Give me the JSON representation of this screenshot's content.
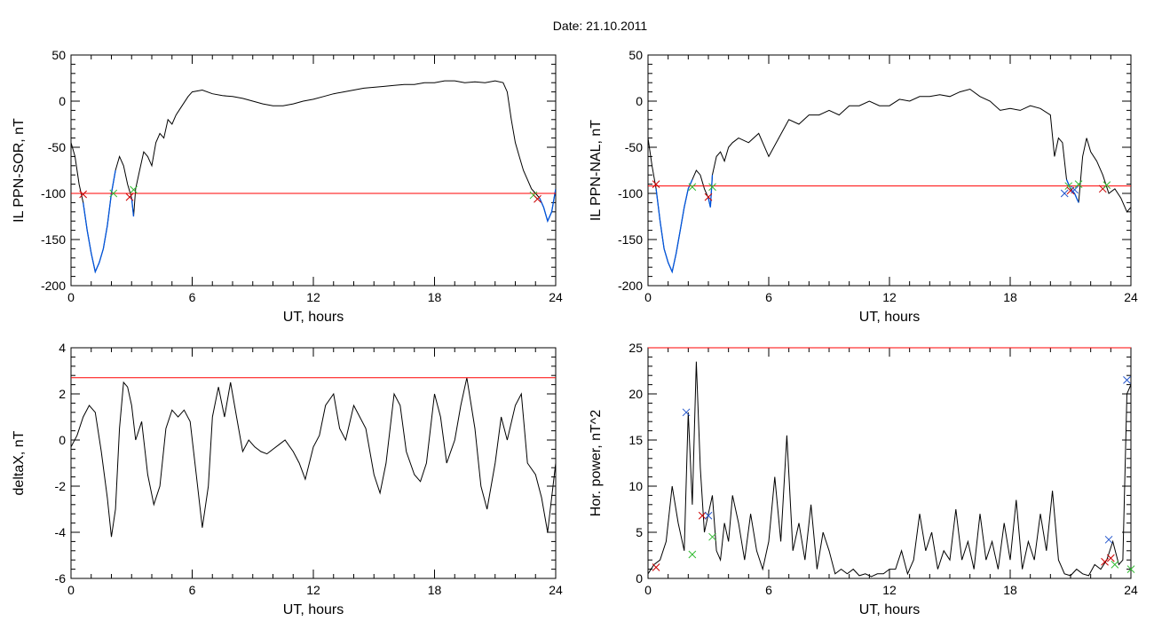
{
  "page": {
    "title": "Date:  21.10.2011"
  },
  "colors": {
    "threshold": "#ff0000",
    "trace": "#000000",
    "highlight": "#0055dd",
    "marker_red": "#cc0000",
    "marker_blue": "#2255cc",
    "marker_green": "#33bb33"
  },
  "chart_data": [
    {
      "type": "line",
      "xlabel": "UT, hours",
      "ylabel": "IL PPN-SOR, nT",
      "xlim": [
        0,
        24
      ],
      "ylim": [
        -200,
        50
      ],
      "xticks": [
        0,
        6,
        12,
        18,
        24
      ],
      "yticks": [
        -200,
        -150,
        -100,
        -50,
        0,
        50
      ],
      "threshold": -100,
      "series": [
        {
          "x": [
            0,
            0.2,
            0.4,
            0.6,
            0.8,
            1.0,
            1.2,
            1.4,
            1.6,
            1.8,
            2.0,
            2.2,
            2.4,
            2.6,
            2.8,
            3.0,
            3.1,
            3.2,
            3.4,
            3.6,
            3.8,
            4.0,
            4.2,
            4.4,
            4.6,
            4.8,
            5.0,
            5.2,
            5.5,
            5.8,
            6.0,
            6.5,
            7,
            7.5,
            8,
            8.5,
            9,
            9.5,
            10,
            10.5,
            11,
            11.5,
            12,
            12.5,
            13,
            13.5,
            14,
            14.5,
            15,
            15.5,
            16,
            16.5,
            17,
            17.5,
            18,
            18.5,
            19,
            19.5,
            20,
            20.5,
            21,
            21.4,
            21.6,
            21.8,
            22.0,
            22.2,
            22.4,
            22.6,
            22.8,
            23.0,
            23.2,
            23.4,
            23.6,
            23.8,
            24.0
          ],
          "y": [
            -45,
            -60,
            -90,
            -110,
            -140,
            -165,
            -185,
            -175,
            -160,
            -135,
            -100,
            -75,
            -60,
            -70,
            -90,
            -105,
            -125,
            -95,
            -75,
            -55,
            -60,
            -70,
            -45,
            -35,
            -40,
            -20,
            -25,
            -15,
            -5,
            5,
            10,
            12,
            8,
            6,
            5,
            3,
            0,
            -3,
            -5,
            -5,
            -3,
            0,
            2,
            5,
            8,
            10,
            12,
            14,
            15,
            16,
            17,
            18,
            18,
            20,
            20,
            22,
            22,
            20,
            21,
            20,
            22,
            20,
            10,
            -20,
            -45,
            -60,
            -75,
            -85,
            -95,
            -100,
            -105,
            -115,
            -130,
            -120,
            -95
          ]
        }
      ],
      "markers": [
        {
          "x": 0.6,
          "y": -101,
          "color": "red"
        },
        {
          "x": 2.1,
          "y": -100,
          "color": "green"
        },
        {
          "x": 2.9,
          "y": -104,
          "color": "red"
        },
        {
          "x": 3.1,
          "y": -96,
          "color": "green"
        },
        {
          "x": 22.9,
          "y": -102,
          "color": "green"
        },
        {
          "x": 23.1,
          "y": -106,
          "color": "red"
        }
      ],
      "highlight": [
        [
          0.6,
          2.2
        ],
        [
          2.9,
          3.1
        ],
        [
          23.1,
          24
        ]
      ]
    },
    {
      "type": "line",
      "xlabel": "UT, hours",
      "ylabel": "IL PPN-NAL, nT",
      "xlim": [
        0,
        24
      ],
      "ylim": [
        -200,
        50
      ],
      "xticks": [
        0,
        6,
        12,
        18,
        24
      ],
      "yticks": [
        -200,
        -150,
        -100,
        -50,
        0,
        50
      ],
      "threshold": -92,
      "series": [
        {
          "x": [
            0,
            0.2,
            0.4,
            0.6,
            0.8,
            1.0,
            1.2,
            1.4,
            1.6,
            1.8,
            2.0,
            2.2,
            2.4,
            2.6,
            2.8,
            3.0,
            3.1,
            3.2,
            3.4,
            3.6,
            3.8,
            4.0,
            4.2,
            4.5,
            5,
            5.5,
            6,
            6.5,
            7,
            7.5,
            8,
            8.5,
            9,
            9.5,
            10,
            10.5,
            11,
            11.5,
            12,
            12.5,
            13,
            13.5,
            14,
            14.5,
            15,
            15.5,
            16,
            16.5,
            17,
            17.5,
            18,
            18.5,
            19,
            19.5,
            20,
            20.2,
            20.4,
            20.6,
            20.8,
            21.0,
            21.2,
            21.4,
            21.6,
            21.8,
            22.0,
            22.3,
            22.6,
            22.9,
            23.2,
            23.5,
            23.8,
            24.0
          ],
          "y": [
            -40,
            -70,
            -95,
            -130,
            -160,
            -175,
            -185,
            -165,
            -140,
            -115,
            -95,
            -85,
            -75,
            -80,
            -95,
            -105,
            -115,
            -80,
            -60,
            -55,
            -65,
            -50,
            -45,
            -40,
            -45,
            -35,
            -60,
            -40,
            -20,
            -25,
            -15,
            -15,
            -10,
            -15,
            -5,
            -5,
            0,
            -5,
            -5,
            2,
            0,
            5,
            5,
            7,
            5,
            10,
            13,
            5,
            0,
            -10,
            -8,
            -10,
            -5,
            -8,
            -15,
            -60,
            -40,
            -45,
            -85,
            -95,
            -100,
            -110,
            -60,
            -40,
            -55,
            -65,
            -80,
            -100,
            -95,
            -105,
            -120,
            -115
          ]
        }
      ],
      "markers": [
        {
          "x": 0.4,
          "y": -90,
          "color": "red"
        },
        {
          "x": 2.2,
          "y": -93,
          "color": "green"
        },
        {
          "x": 3.0,
          "y": -104,
          "color": "red"
        },
        {
          "x": 3.2,
          "y": -93,
          "color": "green"
        },
        {
          "x": 20.7,
          "y": -100,
          "color": "blue"
        },
        {
          "x": 20.9,
          "y": -92,
          "color": "green"
        },
        {
          "x": 21.0,
          "y": -97,
          "color": "red"
        },
        {
          "x": 21.2,
          "y": -96,
          "color": "blue"
        },
        {
          "x": 21.4,
          "y": -90,
          "color": "green"
        },
        {
          "x": 22.6,
          "y": -95,
          "color": "red"
        },
        {
          "x": 22.8,
          "y": -91,
          "color": "green"
        }
      ],
      "highlight": [
        [
          0.4,
          2.3
        ],
        [
          3.0,
          3.2
        ],
        [
          20.7,
          21.4
        ]
      ]
    },
    {
      "type": "line",
      "xlabel": "UT, hours",
      "ylabel": "deltaX, nT",
      "xlim": [
        0,
        24
      ],
      "ylim": [
        -6,
        4
      ],
      "xticks": [
        0,
        6,
        12,
        18,
        24
      ],
      "yticks": [
        -6,
        -4,
        -2,
        0,
        2,
        4
      ],
      "threshold": 2.7,
      "series": [
        {
          "x": [
            0,
            0.3,
            0.6,
            0.9,
            1.2,
            1.5,
            1.8,
            2.0,
            2.2,
            2.4,
            2.6,
            2.8,
            3.0,
            3.2,
            3.5,
            3.8,
            4.1,
            4.4,
            4.7,
            5.0,
            5.3,
            5.6,
            5.9,
            6.2,
            6.5,
            6.8,
            7.0,
            7.3,
            7.6,
            7.9,
            8.2,
            8.5,
            8.8,
            9.1,
            9.4,
            9.7,
            10.0,
            10.3,
            10.6,
            11.0,
            11.3,
            11.6,
            12.0,
            12.3,
            12.6,
            13.0,
            13.3,
            13.6,
            14.0,
            14.3,
            14.6,
            15.0,
            15.3,
            15.6,
            16.0,
            16.3,
            16.6,
            17.0,
            17.3,
            17.6,
            18.0,
            18.3,
            18.6,
            19.0,
            19.3,
            19.6,
            20.0,
            20.3,
            20.6,
            21.0,
            21.3,
            21.6,
            22.0,
            22.3,
            22.6,
            23.0,
            23.3,
            23.6,
            24.0
          ],
          "y": [
            -0.3,
            0.2,
            1.0,
            1.5,
            1.2,
            -0.5,
            -2.5,
            -4.2,
            -3.0,
            0.5,
            2.5,
            2.3,
            1.5,
            0.0,
            0.8,
            -1.5,
            -2.8,
            -2.0,
            0.5,
            1.3,
            1.0,
            1.3,
            0.8,
            -1.5,
            -3.8,
            -2.0,
            1.0,
            2.3,
            1.0,
            2.5,
            1.0,
            -0.5,
            0.0,
            -0.3,
            -0.5,
            -0.6,
            -0.4,
            -0.2,
            0.0,
            -0.5,
            -1.0,
            -1.7,
            -0.3,
            0.2,
            1.5,
            2.0,
            0.5,
            0.0,
            1.5,
            1.0,
            0.5,
            -1.5,
            -2.3,
            -1.0,
            2.0,
            1.5,
            -0.5,
            -1.5,
            -1.8,
            -1.0,
            2.0,
            1.0,
            -1.0,
            0.0,
            1.5,
            2.7,
            0.5,
            -2.0,
            -3.0,
            -1.0,
            1.0,
            0.0,
            1.5,
            2.0,
            -1.0,
            -1.5,
            -2.5,
            -4.0,
            -1.0
          ]
        }
      ],
      "markers": [],
      "highlight": []
    },
    {
      "type": "line",
      "xlabel": "UT, hours",
      "ylabel": "Hor. power, nT^2",
      "xlim": [
        0,
        24
      ],
      "ylim": [
        0,
        25
      ],
      "xticks": [
        0,
        6,
        12,
        18,
        24
      ],
      "yticks": [
        0,
        5,
        10,
        15,
        20,
        25
      ],
      "threshold": 25,
      "series": [
        {
          "x": [
            0,
            0.3,
            0.6,
            0.9,
            1.2,
            1.5,
            1.8,
            2.0,
            2.2,
            2.4,
            2.6,
            2.8,
            3.0,
            3.2,
            3.4,
            3.6,
            3.8,
            4.0,
            4.2,
            4.5,
            4.8,
            5.1,
            5.4,
            5.7,
            6.0,
            6.3,
            6.6,
            6.9,
            7.2,
            7.5,
            7.8,
            8.1,
            8.4,
            8.7,
            9.0,
            9.3,
            9.6,
            9.9,
            10.2,
            10.5,
            10.8,
            11.1,
            11.4,
            11.7,
            12.0,
            12.3,
            12.6,
            12.9,
            13.2,
            13.5,
            13.8,
            14.1,
            14.4,
            14.7,
            15.0,
            15.3,
            15.6,
            15.9,
            16.2,
            16.5,
            16.8,
            17.1,
            17.4,
            17.7,
            18.0,
            18.3,
            18.6,
            18.9,
            19.2,
            19.5,
            19.8,
            20.1,
            20.4,
            20.7,
            21.0,
            21.3,
            21.6,
            21.9,
            22.2,
            22.5,
            22.8,
            23.1,
            23.4,
            23.6,
            23.8,
            24.0
          ],
          "y": [
            0.5,
            1.5,
            2.0,
            4.0,
            10.0,
            6.0,
            3.0,
            18.0,
            8.0,
            23.5,
            12.0,
            5.0,
            7.0,
            9.0,
            3.0,
            2.0,
            6.0,
            4.0,
            9.0,
            6.0,
            2.0,
            7.0,
            3.0,
            1.0,
            4.0,
            11.0,
            4.0,
            15.5,
            3.0,
            6.0,
            2.0,
            8.0,
            1.0,
            5.0,
            3.0,
            0.5,
            1.0,
            0.5,
            1.0,
            0.3,
            0.5,
            0.2,
            0.5,
            0.5,
            1.0,
            1.0,
            3.0,
            0.5,
            2.0,
            7.0,
            3.0,
            5.0,
            1.0,
            3.0,
            2.0,
            7.5,
            2.0,
            4.0,
            1.0,
            7.0,
            2.0,
            4.0,
            1.0,
            6.0,
            2.0,
            8.5,
            1.0,
            4.0,
            2.0,
            7.0,
            3.0,
            9.5,
            2.0,
            0.5,
            0.3,
            1.0,
            0.5,
            0.3,
            1.5,
            1.0,
            2.0,
            4.0,
            1.5,
            2.0,
            20.0,
            21.0
          ]
        }
      ],
      "markers": [
        {
          "x": 0.4,
          "y": 1.2,
          "color": "red"
        },
        {
          "x": 1.9,
          "y": 18.0,
          "color": "blue"
        },
        {
          "x": 2.2,
          "y": 2.6,
          "color": "green"
        },
        {
          "x": 2.7,
          "y": 6.8,
          "color": "red"
        },
        {
          "x": 3.0,
          "y": 6.8,
          "color": "blue"
        },
        {
          "x": 3.2,
          "y": 4.5,
          "color": "green"
        },
        {
          "x": 22.7,
          "y": 1.8,
          "color": "red"
        },
        {
          "x": 22.9,
          "y": 4.2,
          "color": "blue"
        },
        {
          "x": 23.0,
          "y": 2.2,
          "color": "red"
        },
        {
          "x": 23.2,
          "y": 1.5,
          "color": "green"
        },
        {
          "x": 23.8,
          "y": 21.5,
          "color": "blue"
        },
        {
          "x": 24.0,
          "y": 1.0,
          "color": "green"
        }
      ],
      "highlight": []
    }
  ]
}
